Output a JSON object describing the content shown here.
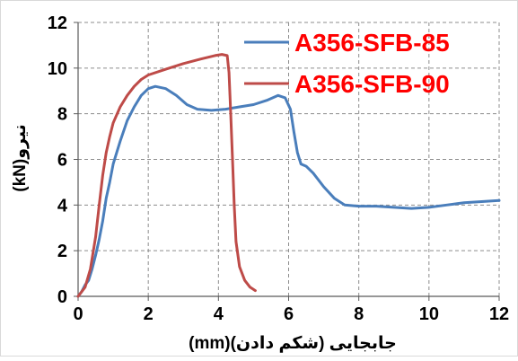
{
  "chart_data": {
    "type": "line",
    "xlabel": "جابجایی (شکم دادن)(mm)",
    "ylabel": "نیرو(kN)",
    "xlim": [
      0,
      12
    ],
    "ylim": [
      0,
      12
    ],
    "x_ticks": [
      "0",
      "2",
      "4",
      "6",
      "8",
      "10",
      "12"
    ],
    "y_ticks": [
      "0",
      "2",
      "4",
      "6",
      "8",
      "10",
      "12"
    ],
    "grid": true,
    "legend_position": "top-right",
    "series": [
      {
        "name": "A356-SFB-85",
        "color": "#4a7ebb",
        "points": [
          [
            0,
            0
          ],
          [
            0.1,
            0.2
          ],
          [
            0.2,
            0.5
          ],
          [
            0.3,
            0.7
          ],
          [
            0.4,
            1.2
          ],
          [
            0.5,
            1.8
          ],
          [
            0.6,
            2.5
          ],
          [
            0.7,
            3.3
          ],
          [
            0.8,
            4.3
          ],
          [
            0.9,
            5.0
          ],
          [
            1.0,
            5.8
          ],
          [
            1.2,
            6.8
          ],
          [
            1.4,
            7.7
          ],
          [
            1.6,
            8.3
          ],
          [
            1.8,
            8.8
          ],
          [
            2.0,
            9.1
          ],
          [
            2.2,
            9.2
          ],
          [
            2.5,
            9.1
          ],
          [
            2.8,
            8.8
          ],
          [
            3.1,
            8.4
          ],
          [
            3.4,
            8.2
          ],
          [
            3.8,
            8.15
          ],
          [
            4.2,
            8.2
          ],
          [
            4.6,
            8.3
          ],
          [
            5.0,
            8.4
          ],
          [
            5.4,
            8.6
          ],
          [
            5.7,
            8.8
          ],
          [
            5.9,
            8.7
          ],
          [
            6.05,
            8.2
          ],
          [
            6.15,
            7.2
          ],
          [
            6.25,
            6.3
          ],
          [
            6.35,
            5.8
          ],
          [
            6.5,
            5.7
          ],
          [
            6.7,
            5.4
          ],
          [
            7.0,
            4.8
          ],
          [
            7.3,
            4.3
          ],
          [
            7.6,
            4.0
          ],
          [
            8.0,
            3.95
          ],
          [
            8.5,
            3.95
          ],
          [
            9.0,
            3.9
          ],
          [
            9.5,
            3.85
          ],
          [
            10.0,
            3.9
          ],
          [
            10.5,
            4.0
          ],
          [
            11.0,
            4.1
          ],
          [
            11.5,
            4.15
          ],
          [
            12.0,
            4.2
          ]
        ]
      },
      {
        "name": "A356-SFB-90",
        "color": "#be4b48",
        "points": [
          [
            0,
            0
          ],
          [
            0.2,
            0.4
          ],
          [
            0.35,
            1.2
          ],
          [
            0.5,
            2.6
          ],
          [
            0.6,
            4.0
          ],
          [
            0.7,
            5.3
          ],
          [
            0.8,
            6.3
          ],
          [
            0.9,
            7.0
          ],
          [
            1.0,
            7.6
          ],
          [
            1.2,
            8.3
          ],
          [
            1.4,
            8.8
          ],
          [
            1.6,
            9.2
          ],
          [
            1.8,
            9.5
          ],
          [
            2.0,
            9.7
          ],
          [
            2.5,
            9.95
          ],
          [
            3.0,
            10.2
          ],
          [
            3.5,
            10.4
          ],
          [
            3.9,
            10.55
          ],
          [
            4.1,
            10.6
          ],
          [
            4.25,
            10.55
          ],
          [
            4.3,
            9.8
          ],
          [
            4.35,
            8.0
          ],
          [
            4.4,
            6.0
          ],
          [
            4.45,
            4.0
          ],
          [
            4.5,
            2.4
          ],
          [
            4.6,
            1.3
          ],
          [
            4.75,
            0.7
          ],
          [
            4.9,
            0.4
          ],
          [
            5.05,
            0.25
          ]
        ]
      }
    ]
  }
}
